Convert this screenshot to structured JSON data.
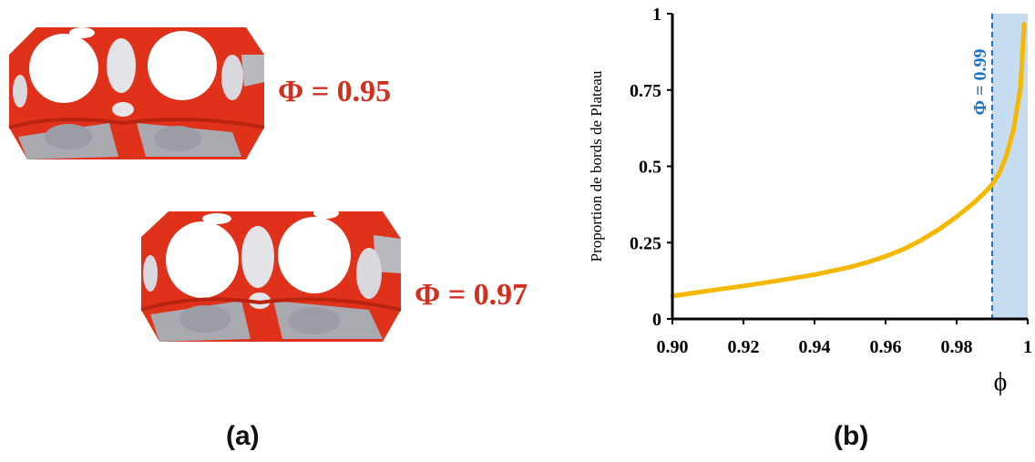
{
  "panel_a": {
    "label": "(a)",
    "structures": [
      {
        "phi_label": "Φ = 0.95"
      },
      {
        "phi_label": "Φ = 0.97"
      }
    ],
    "colors": {
      "film": "#e0321b",
      "film_dark": "#b8240f",
      "face": "#a9a9b0"
    }
  },
  "panel_b": {
    "label": "(b)"
  },
  "chart_data": {
    "type": "line",
    "ylabel": "Proportion de bords de Plateau",
    "xlabel": "ϕ",
    "xlim": [
      0.9,
      1.0
    ],
    "ylim": [
      0,
      1
    ],
    "x_ticks": [
      0.9,
      0.92,
      0.94,
      0.96,
      0.98,
      1.0
    ],
    "x_tick_labels": [
      "0.90",
      "0.92",
      "0.94",
      "0.96",
      "0.98",
      "1"
    ],
    "y_ticks": [
      0,
      0.25,
      0.5,
      0.75,
      1
    ],
    "y_tick_labels": [
      "0",
      "0.25",
      "0.5",
      "0.75",
      "1"
    ],
    "grid": false,
    "series": [
      {
        "color": "#f5b800",
        "x": [
          0.9,
          0.91,
          0.92,
          0.93,
          0.94,
          0.95,
          0.955,
          0.96,
          0.965,
          0.97,
          0.975,
          0.98,
          0.985,
          0.988,
          0.99,
          0.992,
          0.994,
          0.996,
          0.998,
          0.999
        ],
        "y": [
          0.075,
          0.092,
          0.108,
          0.126,
          0.145,
          0.17,
          0.186,
          0.205,
          0.228,
          0.258,
          0.293,
          0.335,
          0.382,
          0.415,
          0.44,
          0.478,
          0.535,
          0.62,
          0.76,
          0.965
        ]
      }
    ],
    "annotations": [
      {
        "text": "Φ = 0.99",
        "x": 0.99,
        "color": "#1f73c4",
        "style": "dashed-vertical-line"
      }
    ],
    "shaded_region": {
      "x_range": [
        0.99,
        1.0
      ],
      "color": "#bcd6ee"
    }
  }
}
